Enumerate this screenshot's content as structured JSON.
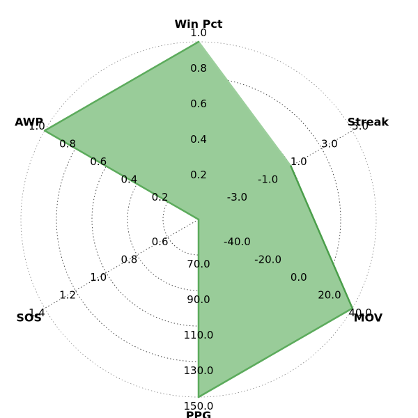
{
  "chart_data": {
    "type": "radar",
    "title": "",
    "axes": [
      {
        "name": "Win Pct",
        "ticks": [
          "0.2",
          "0.4",
          "0.6",
          "0.8",
          "1.0"
        ],
        "range": [
          0.0,
          1.0
        ]
      },
      {
        "name": "Streak",
        "ticks": [
          "-3.0",
          "-1.0",
          "1.0",
          "3.0",
          "5.0"
        ],
        "range": [
          -5.0,
          5.0
        ]
      },
      {
        "name": "MOV",
        "ticks": [
          "-40.0",
          "-20.0",
          "0.0",
          "20.0",
          "40.0"
        ],
        "range": [
          -60.0,
          40.0
        ]
      },
      {
        "name": "PPG",
        "ticks": [
          "70.0",
          "90.0",
          "110.0",
          "130.0",
          "150.0"
        ],
        "range": [
          50.0,
          150.0
        ]
      },
      {
        "name": "SOS",
        "ticks": [
          "0.6",
          "0.8",
          "1.0",
          "1.2",
          "1.4"
        ],
        "range": [
          0.4,
          1.4
        ]
      },
      {
        "name": "AWP",
        "ticks": [
          "0.2",
          "0.4",
          "0.6",
          "0.8",
          "1.0"
        ],
        "range": [
          0.0,
          1.0
        ]
      }
    ],
    "values": [
      1.0,
      1.0,
      40.0,
      150.0,
      0.4,
      1.0
    ],
    "colors": {
      "fill": "#99cc99",
      "edge_dark": "#4a9e4a",
      "edge_mid": "#5cab5c",
      "edge_light": "#9ccf9c",
      "grid": "#333333"
    },
    "grid": true
  }
}
